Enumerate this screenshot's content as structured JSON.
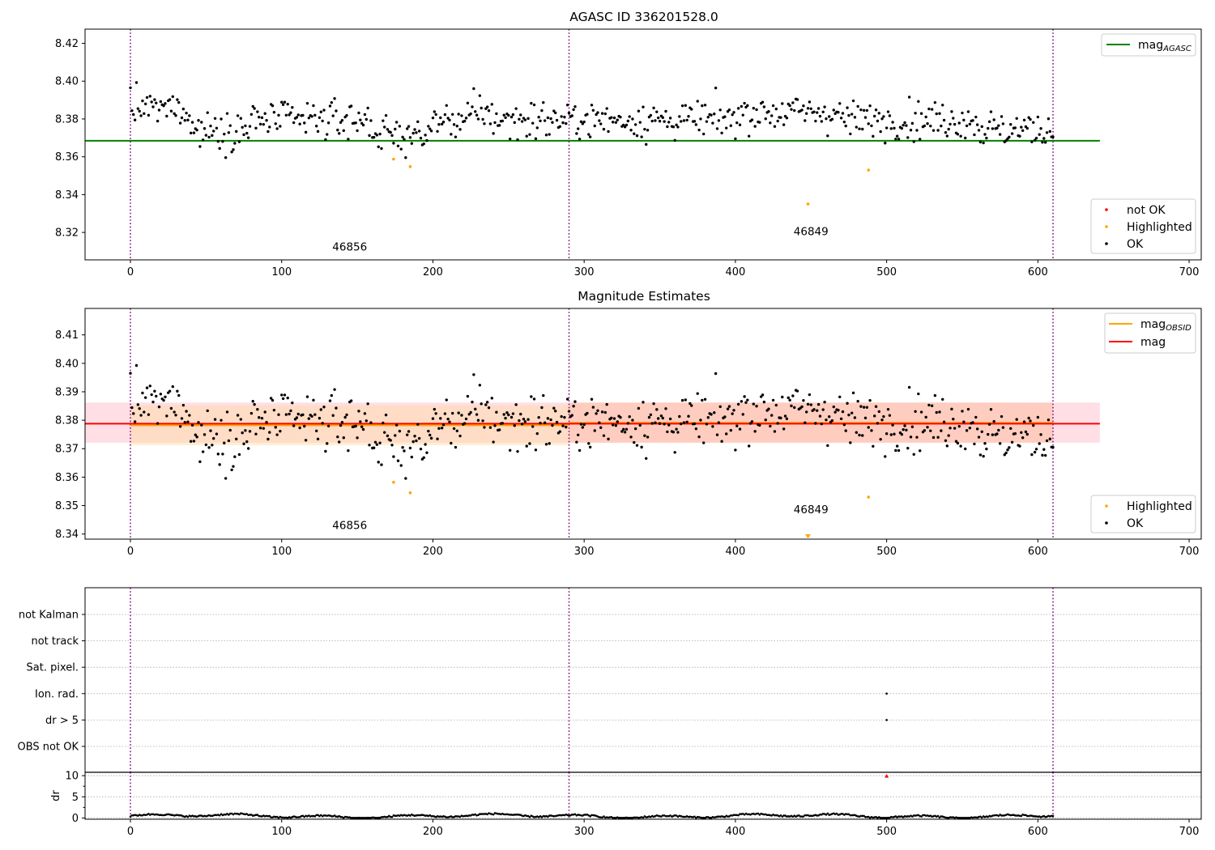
{
  "chart_data": [
    {
      "type": "scatter",
      "title": "AGASC ID 336201528.0",
      "xlabel": "",
      "ylabel": "",
      "xlim": [
        -30,
        708
      ],
      "ylim": [
        8.3055,
        8.4275
      ],
      "xticks": [
        0,
        100,
        200,
        300,
        400,
        500,
        600,
        700
      ],
      "yticks": [
        8.32,
        8.34,
        8.36,
        8.38,
        8.4,
        8.42
      ],
      "ytick_labels": [
        "8.32",
        "8.34",
        "8.36",
        "8.38",
        "8.40",
        "8.42"
      ],
      "vlines": [
        0,
        290,
        610
      ],
      "hlines": [
        {
          "name": "mag_AGASC",
          "y": 8.3685,
          "x": [
            -30,
            641
          ],
          "color": "#008000"
        }
      ],
      "annotations": [
        {
          "text": "46856",
          "x": 145,
          "y": 8.3105
        },
        {
          "text": "46849",
          "x": 450,
          "y": 8.3185
        }
      ],
      "series": [
        {
          "name": "Highlighted",
          "color": "#ffa500",
          "x": [
            174,
            185,
            448,
            488
          ],
          "y": [
            8.3588,
            8.3548,
            8.335,
            8.353
          ]
        }
      ],
      "legend": [
        {
          "name": "mag",
          "sub": "AGASC",
          "kind": "line",
          "color": "#008000",
          "location": "upper right"
        },
        {
          "name": "not OK",
          "kind": "marker",
          "color": "#ff0000",
          "location": "lower right"
        },
        {
          "name": "Highlighted",
          "kind": "marker",
          "color": "#ffa500",
          "location": "lower right"
        },
        {
          "name": "OK",
          "kind": "marker",
          "color": "#000000",
          "location": "lower right"
        }
      ]
    },
    {
      "type": "scatter",
      "title": "Magnitude Estimates",
      "xlabel": "",
      "ylabel": "",
      "xlim": [
        -30,
        708
      ],
      "ylim": [
        8.3382,
        8.4193
      ],
      "xticks": [
        0,
        100,
        200,
        300,
        400,
        500,
        600,
        700
      ],
      "yticks": [
        8.34,
        8.35,
        8.36,
        8.37,
        8.38,
        8.39,
        8.4,
        8.41
      ],
      "ytick_labels": [
        "8.34",
        "8.35",
        "8.36",
        "8.37",
        "8.38",
        "8.39",
        "8.40",
        "8.41"
      ],
      "vlines": [
        0,
        290,
        610
      ],
      "bands": [
        {
          "y": [
            8.3721,
            8.3862
          ],
          "x": [
            -30,
            641
          ],
          "color": "#ffc0cb",
          "opacity": 0.5
        },
        {
          "y": [
            8.3712,
            8.3852
          ],
          "x": [
            0,
            290
          ],
          "color": "#ffd9a0",
          "opacity": 0.45
        },
        {
          "y": [
            8.3721,
            8.3862
          ],
          "x": [
            290,
            610
          ],
          "color": "#ffb890",
          "opacity": 0.45
        }
      ],
      "lines": [
        {
          "name": "mag",
          "sub": "OBSID",
          "color": "#ffa500",
          "segments": [
            {
              "x": [
                0,
                290
              ],
              "y": 8.3782
            },
            {
              "x": [
                290,
                610
              ],
              "y": 8.3791
            }
          ]
        },
        {
          "name": "mag",
          "color": "#ff0000",
          "segments": [
            {
              "x": [
                -30,
                641
              ],
              "y": 8.3788
            }
          ]
        }
      ],
      "annotations": [
        {
          "text": "46856",
          "x": 145,
          "y": 8.3418
        },
        {
          "text": "46849",
          "x": 450,
          "y": 8.3473
        }
      ],
      "series": [
        {
          "name": "Highlighted",
          "color": "#ffa500",
          "x": [
            174,
            185,
            488
          ],
          "y": [
            8.3582,
            8.3545,
            8.353
          ]
        }
      ],
      "edge_marker": {
        "x": 448,
        "color": "#ffa500",
        "shape": "triangle-down"
      },
      "legend": [
        {
          "name": "mag",
          "sub": "OBSID",
          "kind": "line",
          "color": "#ffa500",
          "location": "upper right"
        },
        {
          "name": "mag",
          "kind": "line",
          "color": "#ff0000",
          "location": "upper right"
        },
        {
          "name": "Highlighted",
          "kind": "marker",
          "color": "#ffa500",
          "location": "lower right"
        },
        {
          "name": "OK",
          "kind": "marker",
          "color": "#000000",
          "location": "lower right"
        }
      ]
    },
    {
      "type": "scatter",
      "title": "",
      "xlabel": "",
      "ylabel": "",
      "xlim": [
        -30,
        708
      ],
      "categories": [
        "not Kalman",
        "not track",
        "Sat. pixel.",
        "Ion. rad.",
        "dr > 5",
        "OBS not OK"
      ],
      "vlines": [
        0,
        290,
        610
      ],
      "flag_points": [
        {
          "category": "Ion. rad.",
          "x": 500
        },
        {
          "category": "dr > 5",
          "x": 500
        }
      ]
    },
    {
      "type": "scatter",
      "title": "",
      "xlabel": "",
      "ylabel": "dr",
      "xlim": [
        -30,
        708
      ],
      "ylim": [
        -0.3,
        10.8
      ],
      "xticks": [
        0,
        100,
        200,
        300,
        400,
        500,
        600,
        700
      ],
      "yticks": [
        0,
        5,
        10
      ],
      "ytick_labels": [
        "0",
        "5",
        "10"
      ],
      "vlines": [
        0,
        290,
        610
      ],
      "outliers": [
        {
          "x": 500,
          "y": 10.0,
          "color": "#ff0000",
          "shape": "triangle-up"
        }
      ]
    }
  ]
}
